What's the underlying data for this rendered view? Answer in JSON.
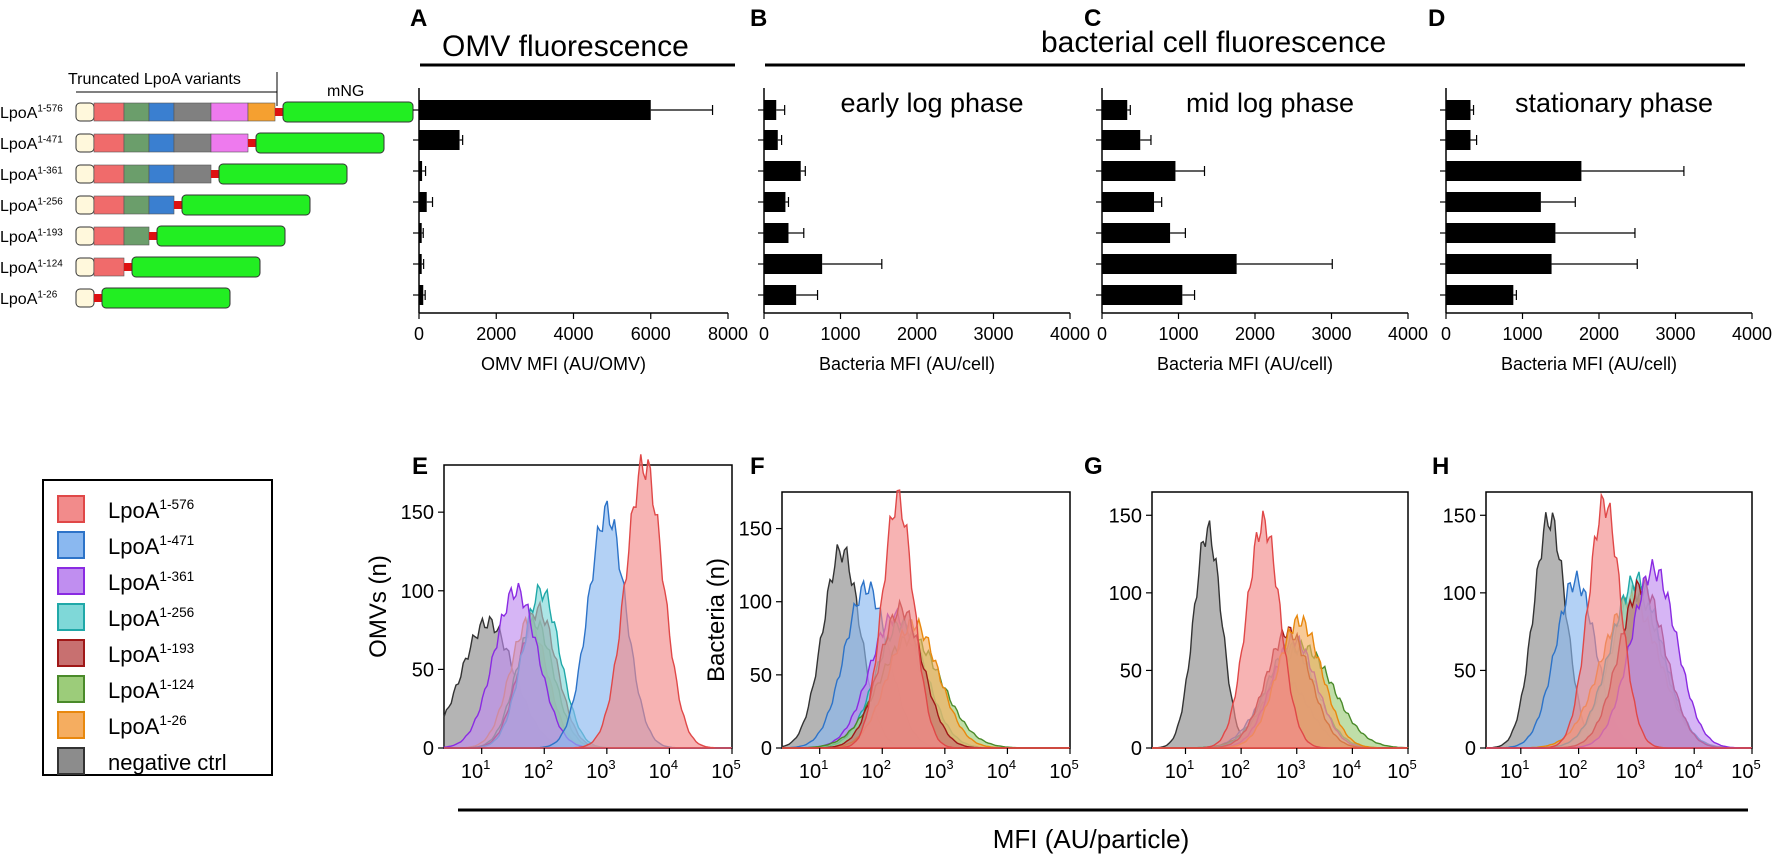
{
  "header": {
    "omv_title": "OMV fluorescence",
    "bact_title": "bacterial cell fluorescence"
  },
  "schematic": {
    "truncated_label": "Truncated LpoA variants",
    "mng_label": "mNG",
    "variants": [
      {
        "base": "LpoA",
        "sup": "1-576",
        "domains": [
          "#f06b6b",
          "#6b9e6b",
          "#3a7fd0",
          "#808080",
          "#ee7aee",
          "#f5a030"
        ],
        "mng_len": 130
      },
      {
        "base": "LpoA",
        "sup": "1-471",
        "domains": [
          "#f06b6b",
          "#6b9e6b",
          "#3a7fd0",
          "#808080",
          "#ee7aee"
        ],
        "mng_len": 128
      },
      {
        "base": "LpoA",
        "sup": "1-361",
        "domains": [
          "#f06b6b",
          "#6b9e6b",
          "#3a7fd0",
          "#808080"
        ],
        "mng_len": 128
      },
      {
        "base": "LpoA",
        "sup": "1-256",
        "domains": [
          "#f06b6b",
          "#6b9e6b",
          "#3a7fd0"
        ],
        "mng_len": 128
      },
      {
        "base": "LpoA",
        "sup": "1-193",
        "domains": [
          "#f06b6b",
          "#6b9e6b"
        ],
        "mng_len": 128
      },
      {
        "base": "LpoA",
        "sup": "1-124",
        "domains": [
          "#f06b6b"
        ],
        "mng_len": 128
      },
      {
        "base": "LpoA",
        "sup": "1-26",
        "domains": [],
        "mng_len": 128
      }
    ],
    "colors": {
      "mng": "#22ee22",
      "linker": "#dd1111",
      "signal": "#fff8dc"
    }
  },
  "legend": {
    "items": [
      {
        "base": "LpoA",
        "sup": "1-576",
        "color": "#f28b8b",
        "stroke": "#e04848"
      },
      {
        "base": "LpoA",
        "sup": "1-471",
        "color": "#8ab8f0",
        "stroke": "#2d73c8"
      },
      {
        "base": "LpoA",
        "sup": "1-361",
        "color": "#c08ef0",
        "stroke": "#8a2be2"
      },
      {
        "base": "LpoA",
        "sup": "1-256",
        "color": "#7fd8d8",
        "stroke": "#20a8a8"
      },
      {
        "base": "LpoA",
        "sup": "1-193",
        "color": "#c87070",
        "stroke": "#a01818"
      },
      {
        "base": "LpoA",
        "sup": "1-124",
        "color": "#9ccc7a",
        "stroke": "#4a8a2a"
      },
      {
        "base": "LpoA",
        "sup": "1-26",
        "color": "#f5ad60",
        "stroke": "#e8880e"
      },
      {
        "base": "negative ctrl",
        "sup": "",
        "color": "#8c8c8c",
        "stroke": "#333333"
      }
    ]
  },
  "bottom_axis_label": "MFI (AU/particle)",
  "chart_data": [
    {
      "type": "bar",
      "panel": "A",
      "orientation": "horizontal",
      "title": "",
      "categories": [
        "LpoA1-576",
        "LpoA1-471",
        "LpoA1-361",
        "LpoA1-256",
        "LpoA1-193",
        "LpoA1-124",
        "LpoA1-26"
      ],
      "values": [
        6000,
        1050,
        80,
        200,
        70,
        70,
        110
      ],
      "errors": [
        1600,
        80,
        90,
        150,
        40,
        50,
        50
      ],
      "xlabel": "OMV MFI (AU/OMV)",
      "xlim": [
        0,
        8000
      ],
      "xticks": [
        0,
        2000,
        4000,
        6000,
        8000
      ],
      "xtick_labels": [
        "0",
        "2000",
        "4000",
        "6000",
        "8000"
      ]
    },
    {
      "type": "bar",
      "panel": "B",
      "orientation": "horizontal",
      "title": "early log phase",
      "categories": [
        "LpoA1-576",
        "LpoA1-471",
        "LpoA1-361",
        "LpoA1-256",
        "LpoA1-193",
        "LpoA1-124",
        "LpoA1-26"
      ],
      "values": [
        160,
        180,
        480,
        280,
        320,
        760,
        420
      ],
      "errors": [
        110,
        50,
        60,
        40,
        200,
        780,
        280
      ],
      "xlabel": "Bacteria MFI (AU/cell)",
      "xlim": [
        0,
        4000
      ],
      "xticks": [
        0,
        1000,
        2000,
        3000,
        4000
      ],
      "xtick_labels": [
        "0",
        "1000",
        "2000",
        "3000",
        "4000"
      ]
    },
    {
      "type": "bar",
      "panel": "C",
      "orientation": "horizontal",
      "title": "mid log phase",
      "categories": [
        "LpoA1-576",
        "LpoA1-471",
        "LpoA1-361",
        "LpoA1-256",
        "LpoA1-193",
        "LpoA1-124",
        "LpoA1-26"
      ],
      "values": [
        330,
        500,
        960,
        680,
        890,
        1760,
        1050
      ],
      "errors": [
        40,
        140,
        380,
        100,
        200,
        1250,
        160
      ],
      "xlabel": "Bacteria MFI (AU/cell)",
      "xlim": [
        0,
        4000
      ],
      "xticks": [
        0,
        1000,
        2000,
        3000,
        4000
      ],
      "xtick_labels": [
        "0",
        "1000",
        "2000",
        "3000",
        "4000"
      ]
    },
    {
      "type": "bar",
      "panel": "D",
      "orientation": "horizontal",
      "title": "stationary phase",
      "categories": [
        "LpoA1-576",
        "LpoA1-471",
        "LpoA1-361",
        "LpoA1-256",
        "LpoA1-193",
        "LpoA1-124",
        "LpoA1-26"
      ],
      "values": [
        320,
        320,
        1770,
        1240,
        1430,
        1380,
        880
      ],
      "errors": [
        40,
        80,
        1340,
        450,
        1040,
        1120,
        40
      ],
      "xlabel": "Bacteria MFI (AU/cell)",
      "xlim": [
        0,
        4000
      ],
      "xticks": [
        0,
        1000,
        2000,
        3000,
        4000
      ],
      "xtick_labels": [
        "0",
        "1000",
        "2000",
        "3000",
        "4000"
      ]
    },
    {
      "type": "area",
      "panel": "E",
      "subtype": "histogram-overlay",
      "ylabel": "OMVs (n)",
      "ylim": [
        0,
        180
      ],
      "yticks": [
        0,
        50,
        100,
        150
      ],
      "xscale": "log",
      "xlim": [
        2.5,
        100000
      ],
      "xtick_bases": [
        "10",
        "10",
        "10",
        "10",
        "10"
      ],
      "xtick_exps": [
        "1",
        "2",
        "3",
        "4",
        "5"
      ],
      "series": [
        {
          "name": "negative ctrl",
          "peak_log10": 1.1,
          "sd": 0.42,
          "height": 80
        },
        {
          "name": "LpoA1-26",
          "peak_log10": 1.75,
          "sd": 0.3,
          "height": 80
        },
        {
          "name": "LpoA1-124",
          "peak_log10": 1.85,
          "sd": 0.3,
          "height": 80
        },
        {
          "name": "LpoA1-193",
          "peak_log10": 1.9,
          "sd": 0.3,
          "height": 88
        },
        {
          "name": "LpoA1-256",
          "peak_log10": 1.95,
          "sd": 0.3,
          "height": 100
        },
        {
          "name": "LpoA1-361",
          "peak_log10": 1.55,
          "sd": 0.35,
          "height": 100
        },
        {
          "name": "LpoA1-471",
          "peak_log10": 3.0,
          "sd": 0.3,
          "height": 150
        },
        {
          "name": "LpoA1-576",
          "peak_log10": 3.6,
          "sd": 0.3,
          "height": 180
        }
      ]
    },
    {
      "type": "area",
      "panel": "F",
      "subtype": "histogram-overlay",
      "ylabel": "Bacteria (n)",
      "ylim": [
        0,
        175
      ],
      "yticks": [
        0,
        50,
        100,
        150
      ],
      "xscale": "log",
      "xlim": [
        2.5,
        100000
      ],
      "xtick_bases": [
        "10",
        "10",
        "10",
        "10",
        "10"
      ],
      "xtick_exps": [
        "1",
        "2",
        "3",
        "4",
        "5"
      ],
      "series": [
        {
          "name": "negative ctrl",
          "peak_log10": 1.35,
          "sd": 0.3,
          "height": 135
        },
        {
          "name": "LpoA1-471",
          "peak_log10": 1.75,
          "sd": 0.35,
          "height": 110
        },
        {
          "name": "LpoA1-361",
          "peak_log10": 2.2,
          "sd": 0.4,
          "height": 90
        },
        {
          "name": "LpoA1-256",
          "peak_log10": 2.3,
          "sd": 0.4,
          "height": 85
        },
        {
          "name": "LpoA1-124",
          "peak_log10": 2.45,
          "sd": 0.5,
          "height": 75
        },
        {
          "name": "LpoA1-26",
          "peak_log10": 2.5,
          "sd": 0.4,
          "height": 85
        },
        {
          "name": "LpoA1-193",
          "peak_log10": 2.3,
          "sd": 0.35,
          "height": 95
        },
        {
          "name": "LpoA1-576",
          "peak_log10": 2.25,
          "sd": 0.25,
          "height": 170
        }
      ]
    },
    {
      "type": "area",
      "panel": "G",
      "subtype": "histogram-overlay",
      "ylabel": "",
      "ylim": [
        0,
        165
      ],
      "yticks": [
        0,
        50,
        100,
        150
      ],
      "xscale": "log",
      "xlim": [
        2.5,
        100000
      ],
      "xtick_bases": [
        "10",
        "10",
        "10",
        "10",
        "10"
      ],
      "xtick_exps": [
        "1",
        "2",
        "3",
        "4",
        "5"
      ],
      "series": [
        {
          "name": "negative ctrl",
          "peak_log10": 1.4,
          "sd": 0.25,
          "height": 140
        },
        {
          "name": "LpoA1-471",
          "peak_log10": 2.75,
          "sd": 0.45,
          "height": 45
        },
        {
          "name": "LpoA1-124",
          "peak_log10": 3.1,
          "sd": 0.55,
          "height": 65
        },
        {
          "name": "LpoA1-256",
          "peak_log10": 2.9,
          "sd": 0.45,
          "height": 65
        },
        {
          "name": "LpoA1-361",
          "peak_log10": 2.95,
          "sd": 0.4,
          "height": 70
        },
        {
          "name": "LpoA1-193",
          "peak_log10": 2.85,
          "sd": 0.4,
          "height": 75
        },
        {
          "name": "LpoA1-26",
          "peak_log10": 3.05,
          "sd": 0.4,
          "height": 82
        },
        {
          "name": "LpoA1-576",
          "peak_log10": 2.4,
          "sd": 0.3,
          "height": 145
        }
      ]
    },
    {
      "type": "area",
      "panel": "H",
      "subtype": "histogram-overlay",
      "ylabel": "",
      "ylim": [
        0,
        165
      ],
      "yticks": [
        0,
        50,
        100,
        150
      ],
      "xscale": "log",
      "xlim": [
        2.5,
        100000
      ],
      "xtick_bases": [
        "10",
        "10",
        "10",
        "10",
        "10"
      ],
      "xtick_exps": [
        "1",
        "2",
        "3",
        "4",
        "5"
      ],
      "series": [
        {
          "name": "negative ctrl",
          "peak_log10": 1.5,
          "sd": 0.28,
          "height": 148
        },
        {
          "name": "LpoA1-471",
          "peak_log10": 1.95,
          "sd": 0.35,
          "height": 108
        },
        {
          "name": "LpoA1-124",
          "peak_log10": 3.0,
          "sd": 0.45,
          "height": 100
        },
        {
          "name": "LpoA1-26",
          "peak_log10": 2.9,
          "sd": 0.5,
          "height": 95
        },
        {
          "name": "LpoA1-256",
          "peak_log10": 3.0,
          "sd": 0.45,
          "height": 108
        },
        {
          "name": "LpoA1-193",
          "peak_log10": 3.1,
          "sd": 0.4,
          "height": 105
        },
        {
          "name": "LpoA1-361",
          "peak_log10": 3.3,
          "sd": 0.4,
          "height": 115
        },
        {
          "name": "LpoA1-576",
          "peak_log10": 2.45,
          "sd": 0.28,
          "height": 158
        }
      ]
    }
  ]
}
